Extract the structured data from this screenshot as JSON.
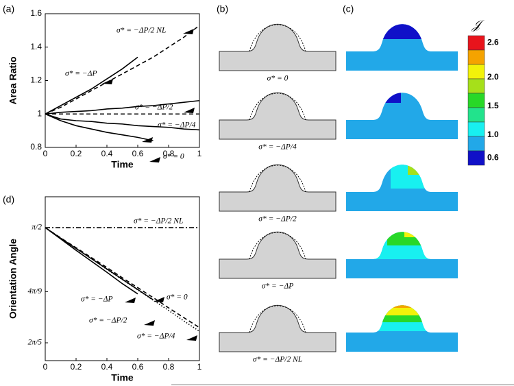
{
  "panel_labels": [
    "(a)",
    "(b)",
    "(c)",
    "(d)"
  ],
  "chart_data": [
    {
      "type": "line",
      "y_label": "Area Ratio",
      "x_label": "Time",
      "x": [
        0,
        0.1,
        0.2,
        0.3,
        0.4,
        0.5,
        0.6,
        0.7,
        0.8,
        0.9,
        1
      ],
      "xlim": [
        0,
        1
      ],
      "xticks": [
        0,
        0.2,
        0.4,
        0.6,
        0.8,
        1
      ],
      "ylim": [
        0.8,
        1.6
      ],
      "yticks": [
        0.8,
        1,
        1.2,
        1.4,
        1.6
      ],
      "hline": 1,
      "series": [
        {
          "name": "σ* = −ΔP/2 NL",
          "color": "#000",
          "dash": "dashed",
          "values": [
            1,
            1.04,
            1.09,
            1.14,
            1.19,
            1.24,
            1.29,
            1.34,
            1.4,
            1.46,
            1.53
          ]
        },
        {
          "name": "σ* = −ΔP",
          "color": "#000",
          "dash": "solid",
          "values": [
            1,
            1.05,
            1.1,
            1.15,
            1.21,
            1.27,
            1.34,
            null,
            null,
            null,
            null
          ]
        },
        {
          "name": "σ* = −ΔP/2",
          "color": "#000",
          "dash": "solid",
          "values": [
            1,
            1.01,
            1.015,
            1.02,
            1.03,
            1.035,
            1.045,
            1.05,
            1.06,
            1.07,
            1.08
          ]
        },
        {
          "name": "σ* = −ΔP/4",
          "color": "#000",
          "dash": "solid",
          "values": [
            1,
            0.97,
            0.96,
            0.955,
            0.945,
            0.94,
            0.93,
            0.925,
            0.92,
            0.91,
            0.905
          ]
        },
        {
          "name": "σ* = 0",
          "color": "#000",
          "dash": "solid",
          "values": [
            1,
            0.96,
            0.93,
            0.91,
            0.89,
            0.875,
            0.86,
            0.84,
            null,
            null,
            null
          ]
        }
      ]
    },
    {
      "type": "line",
      "y_label": "Orientation Angle",
      "x_label": "Time",
      "x": [
        0,
        0.1,
        0.2,
        0.3,
        0.4,
        0.5,
        0.6,
        0.7,
        0.8,
        0.9,
        1
      ],
      "xlim": [
        0,
        1
      ],
      "xticks": [
        0,
        0.2,
        0.4,
        0.6,
        0.8,
        1
      ],
      "ylim": [
        1.208,
        1.655
      ],
      "yticks": [
        {
          "value": 1.5708,
          "label": "π/2"
        },
        {
          "value": 1.3963,
          "label": "4π/9"
        },
        {
          "value": 1.2566,
          "label": "2π/5"
        }
      ],
      "series": [
        {
          "name": "σ* = −ΔP/2 NL",
          "color": "#000",
          "dash": "dashdot",
          "values": [
            1.5708,
            1.5708,
            1.5708,
            1.5708,
            1.5708,
            1.5708,
            1.5708,
            1.5708,
            1.5708,
            1.5708,
            1.5708
          ]
        },
        {
          "name": "σ* = −ΔP",
          "color": "#000",
          "dash": "solid",
          "values": [
            1.5708,
            1.54,
            1.509,
            1.479,
            1.449,
            1.418,
            1.39,
            null,
            null,
            null,
            null
          ]
        },
        {
          "name": "σ* = 0",
          "color": "#000",
          "dash": "solid",
          "values": [
            1.5708,
            1.542,
            1.514,
            1.486,
            1.458,
            1.43,
            1.402,
            1.374,
            null,
            null,
            null
          ]
        },
        {
          "name": "σ* = −ΔP/2",
          "color": "#000",
          "dash": "dashed",
          "values": [
            1.5708,
            1.543,
            1.516,
            1.489,
            1.462,
            1.434,
            1.407,
            1.38,
            1.352,
            1.325,
            1.298
          ]
        },
        {
          "name": "σ* = −ΔP/4",
          "color": "#000",
          "dash": "dotted",
          "values": [
            1.5708,
            1.542,
            1.514,
            1.486,
            1.457,
            1.429,
            1.401,
            1.373,
            1.345,
            1.316,
            1.288
          ]
        }
      ]
    }
  ],
  "shapes": {
    "captions": [
      "σ* = 0",
      "σ* = −ΔP/4",
      "σ* = −ΔP/2",
      "σ* = −ΔP",
      "σ* = −ΔP/2 NL"
    ]
  },
  "colorbar": {
    "symbol": "𝒥",
    "colors": [
      "#e8141c",
      "#f5a300",
      "#f2f20a",
      "#a6e01a",
      "#28d828",
      "#22e38c",
      "#18f0f0",
      "#22a8e8",
      "#1010c8"
    ],
    "ticks": [
      2.6,
      {
        "value": 2,
        "label": "2.0"
      },
      1.5,
      {
        "value": 1,
        "label": "1.0"
      },
      0.6
    ]
  }
}
